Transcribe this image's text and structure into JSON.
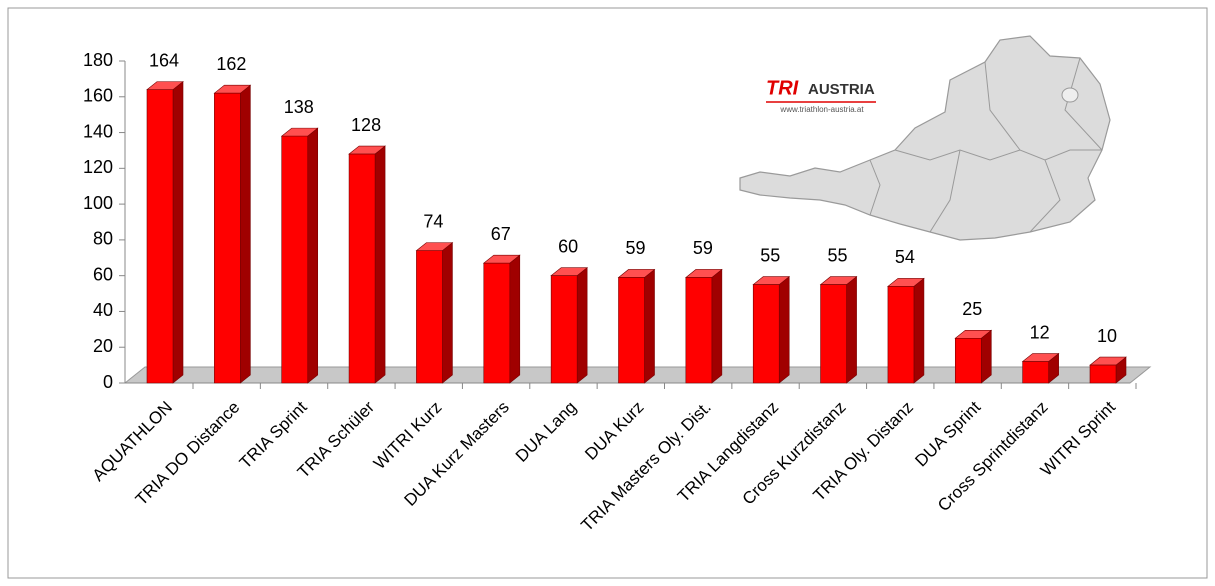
{
  "chart_data": {
    "type": "bar",
    "categories": [
      "AQUATHLON",
      "TRIA DO Distance",
      "TRIA Sprint",
      "TRIA Schüler",
      "WITRI Kurz",
      "DUA Kurz Masters",
      "DUA Lang",
      "DUA Kurz",
      "TRIA Masters Oly. Dist.",
      "TRIA Langdistanz",
      "Cross Kurzdistanz",
      "TRIA Oly. Distanz",
      "DUA Sprint",
      "Cross Sprintdistanz",
      "WITRI Sprint"
    ],
    "values": [
      164,
      162,
      138,
      128,
      74,
      67,
      60,
      59,
      59,
      55,
      55,
      54,
      25,
      12,
      10
    ],
    "color": "#ff0000",
    "ylim": [
      0,
      180
    ],
    "yticks": [
      0,
      20,
      40,
      60,
      80,
      100,
      120,
      140,
      160,
      180
    ],
    "logo": {
      "brand": "TRI",
      "name": "AUSTRIA",
      "url": "www.triathlon-austria.at"
    }
  }
}
